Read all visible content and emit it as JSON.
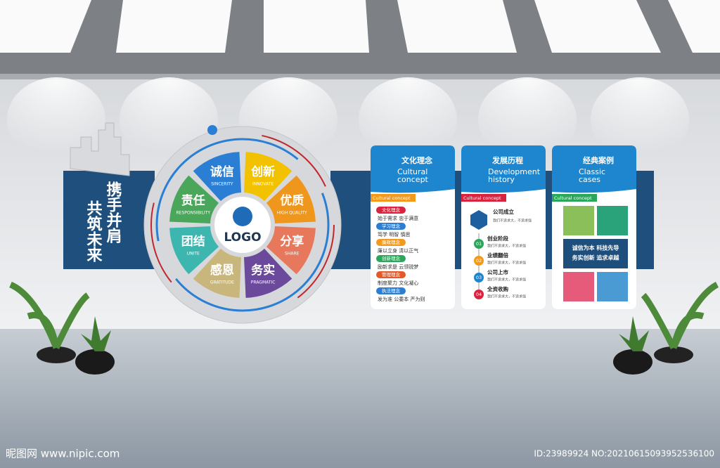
{
  "slogan": [
    "携手并肩",
    "共筑未来"
  ],
  "wheel": {
    "center": "LOGO",
    "segments": [
      {
        "cn": "诚信",
        "en": "SINCERITY",
        "color": "#2a7fd4"
      },
      {
        "cn": "创新",
        "en": "INNOVATE",
        "color": "#f2c200"
      },
      {
        "cn": "优质",
        "en": "HIGH QUALITY",
        "color": "#ef961c"
      },
      {
        "cn": "分享",
        "en": "SHARE",
        "color": "#e8785c"
      },
      {
        "cn": "务实",
        "en": "PRAGMATIC",
        "color": "#6b4a9c"
      },
      {
        "cn": "感恩",
        "en": "GRATITUDE",
        "color": "#c8b67c"
      },
      {
        "cn": "团结",
        "en": "UNITE",
        "color": "#3db6b0"
      },
      {
        "cn": "责任",
        "en": "RESPONSIBILITY",
        "color": "#4aa65a"
      }
    ]
  },
  "panels": [
    {
      "title": "文化理念",
      "subtitle": [
        "Cultural",
        "concept"
      ],
      "tag": "Cultural concept",
      "items": [
        {
          "label": "文化理念",
          "text": "始于需求 忠于满意"
        },
        {
          "label": "学习理念",
          "text": "笃学 明智 慎思"
        },
        {
          "label": "廉政理念",
          "text": "廉以立身 清以正气"
        },
        {
          "label": "创新理念",
          "text": "励新求是 云领锐梦"
        },
        {
          "label": "管理理念",
          "text": "制度聚力 文化凝心"
        },
        {
          "label": "执法理念",
          "text": "发为准 公委本 严为则"
        }
      ]
    },
    {
      "title": "发展历程",
      "subtitle": [
        "Development",
        "history"
      ],
      "tag": "Cultural concept",
      "head": {
        "label": "公司成立",
        "text": "我们不追求大，不追求强"
      },
      "items": [
        {
          "num": "01",
          "label": "创业阶段",
          "text": "我们不追求大，不追求强"
        },
        {
          "num": "02",
          "label": "业绩翻倍",
          "text": "我们不追求大，不追求强"
        },
        {
          "num": "03",
          "label": "公司上市",
          "text": "我们不追求大，不追求强"
        },
        {
          "num": "04",
          "label": "全资收购",
          "text": "我们不追求大，不追求强"
        }
      ]
    },
    {
      "title": "经典案例",
      "subtitle": [
        "Classic",
        "cases"
      ],
      "tag": "Cultural concept",
      "motto": [
        "诚信为本  科技先导",
        "务实创新  追求卓越"
      ]
    }
  ],
  "watermark": {
    "site": "昵图网 www.nipic.com",
    "id": "ID:23989924 NO:20210615093952536100"
  }
}
